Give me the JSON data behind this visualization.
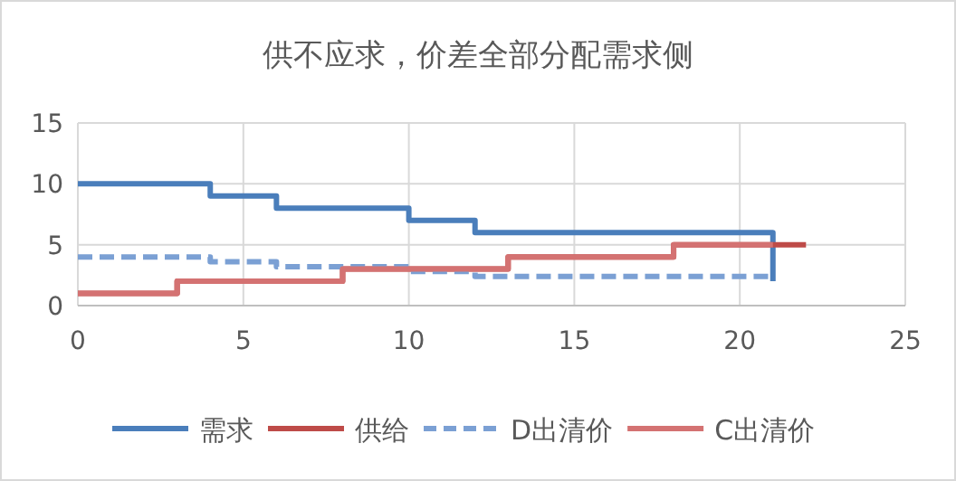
{
  "chart_data": {
    "type": "step",
    "title": "供不应求，价差全部分配需求侧",
    "series": [
      {
        "name": "需求",
        "color": "#4a7ebb",
        "x": [
          0,
          4,
          6,
          10,
          12,
          21
        ],
        "values": [
          10,
          9,
          8,
          7,
          6,
          2
        ],
        "line_style": "solid"
      },
      {
        "name": "供给",
        "color": "#be4b48",
        "x": [
          0,
          3,
          8,
          13,
          18,
          22
        ],
        "values": [
          1,
          2,
          3,
          4,
          5,
          5
        ],
        "line_style": "solid"
      },
      {
        "name": "D出清价",
        "color": "#7ba0d4",
        "x": [
          0,
          4,
          6,
          10,
          12,
          21
        ],
        "values": [
          4,
          3.6,
          3.2,
          2.8,
          2.4,
          2.4
        ],
        "line_style": "dashed"
      },
      {
        "name": "C出清价",
        "color": "#d47272",
        "x": [
          0,
          3,
          8,
          13,
          18,
          21
        ],
        "values": [
          1,
          2,
          3,
          4,
          5,
          5
        ],
        "line_style": "solid"
      }
    ],
    "xlim": [
      0,
      25
    ],
    "xticks": [
      0,
      5,
      10,
      15,
      20,
      25
    ],
    "ylim": [
      0,
      15
    ],
    "yticks": [
      0,
      5,
      10,
      15
    ],
    "grid": true,
    "legend": "bottom"
  }
}
